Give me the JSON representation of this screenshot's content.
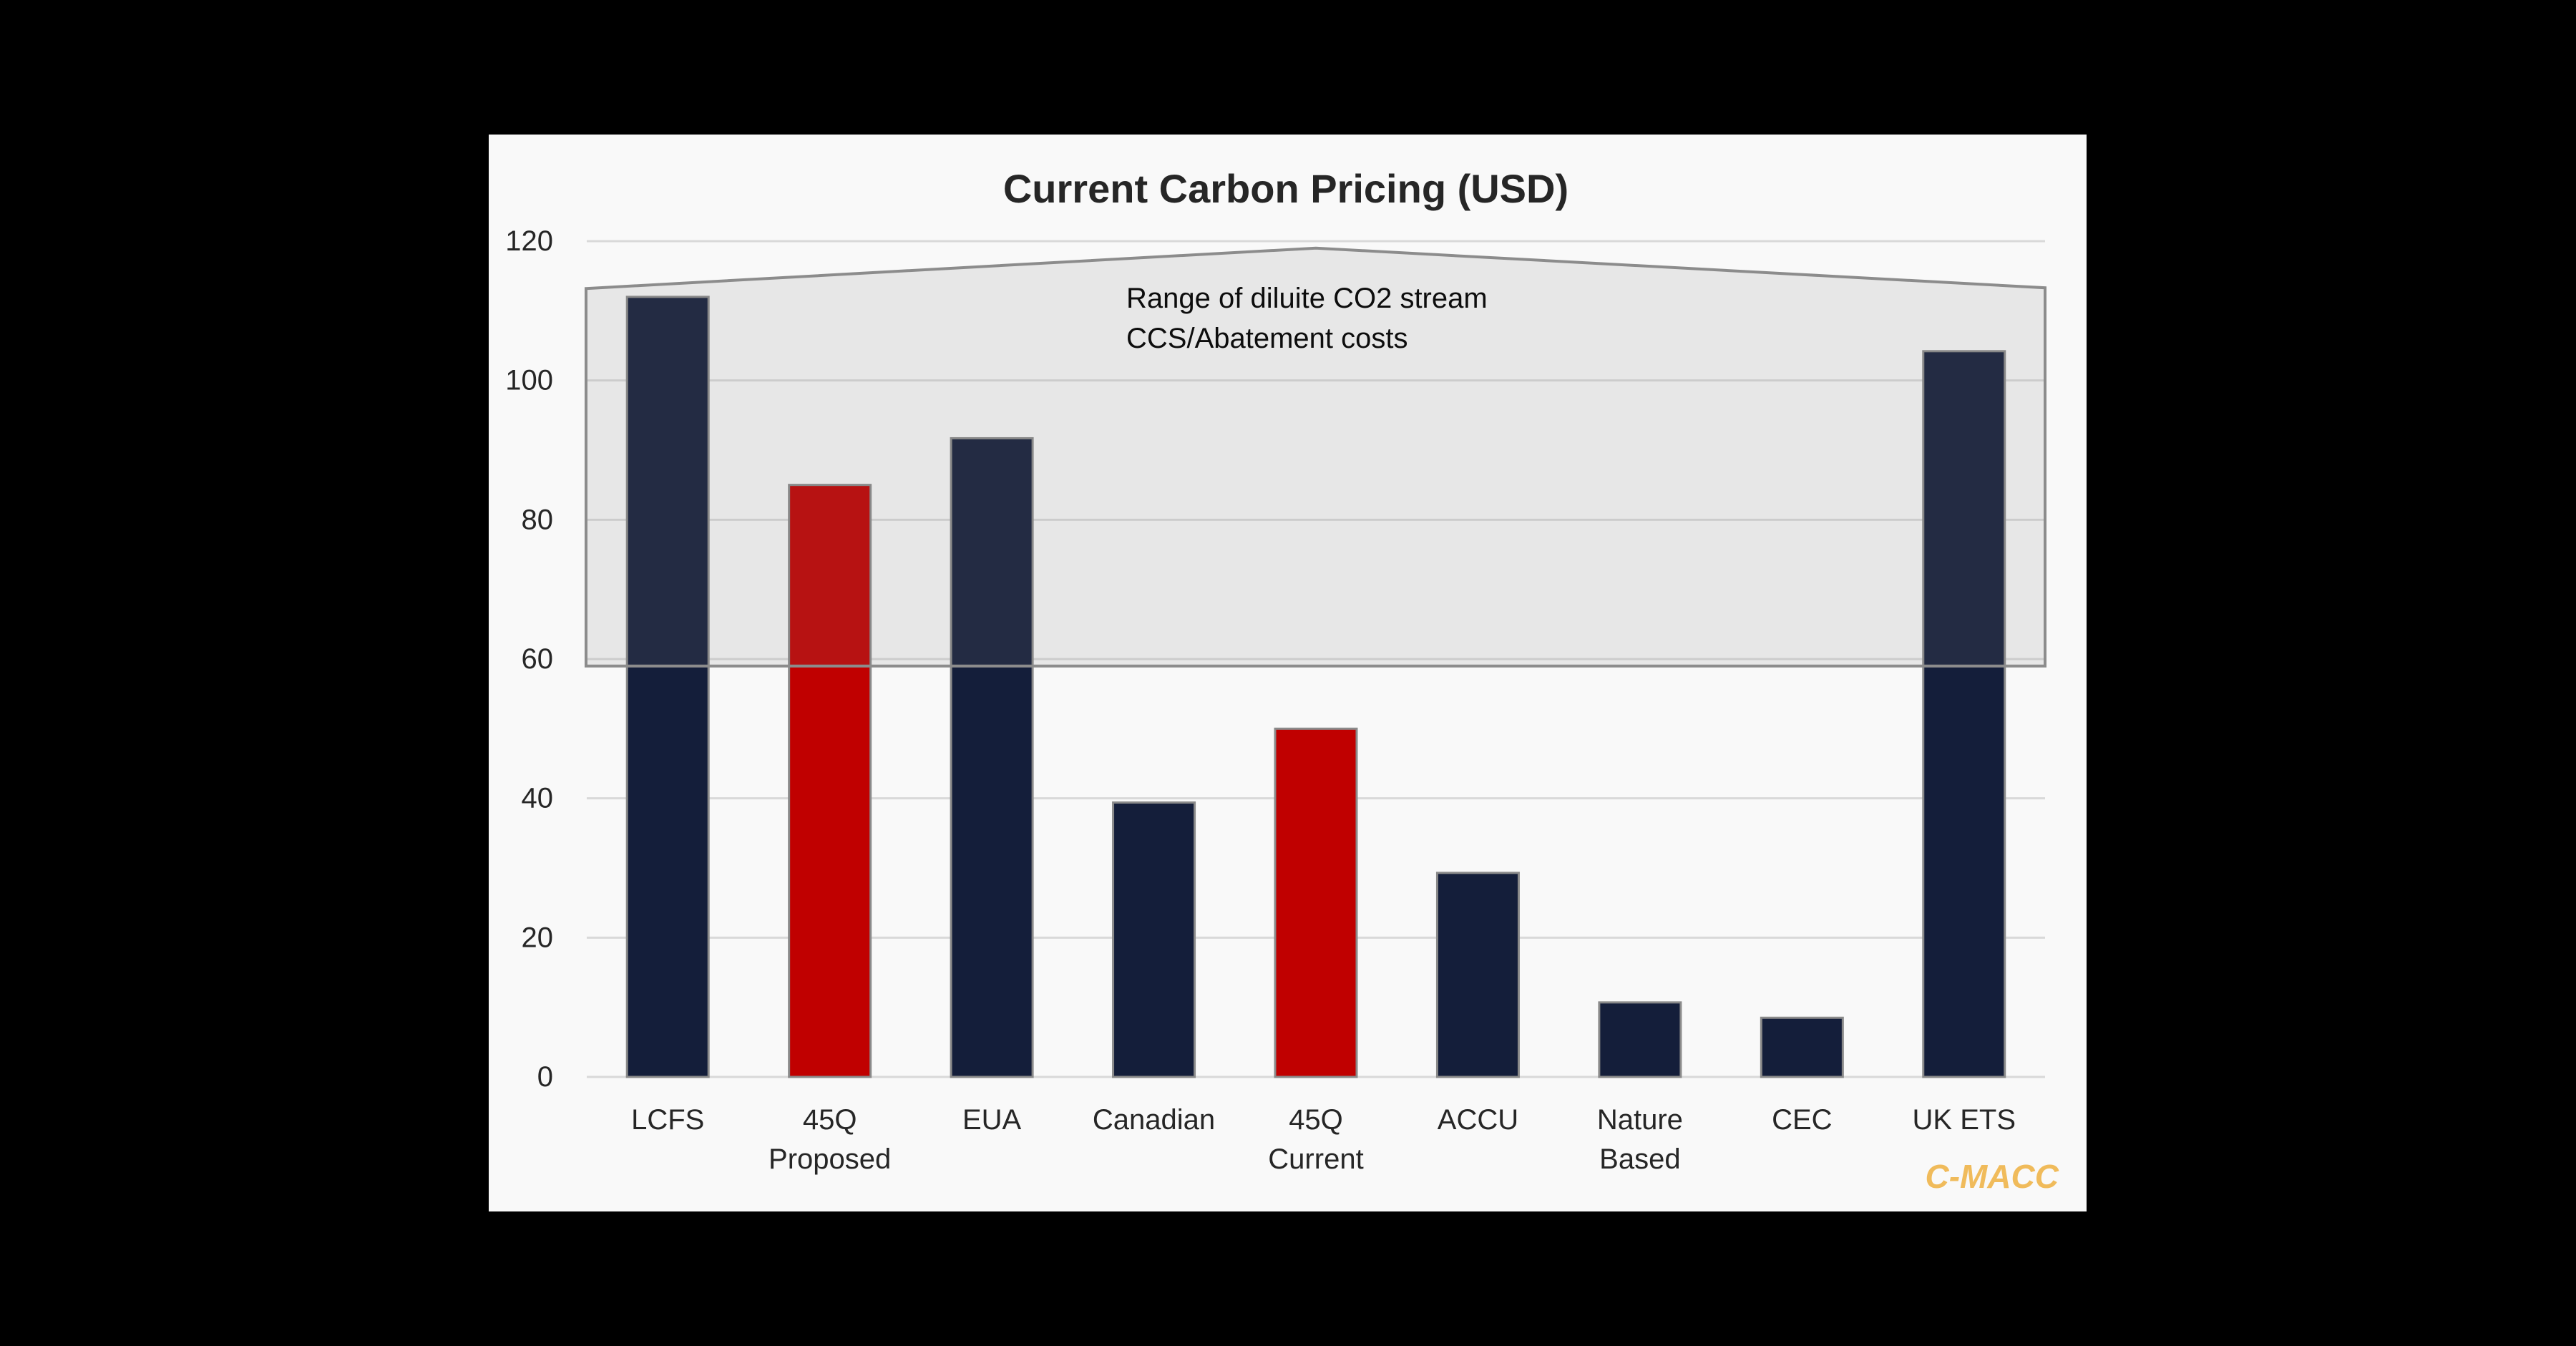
{
  "chart_data": {
    "type": "bar",
    "title": "Current Carbon Pricing (USD)",
    "xlabel": "",
    "ylabel": "",
    "ylim": [
      0,
      120
    ],
    "yticks": [
      0,
      20,
      40,
      60,
      80,
      100,
      120
    ],
    "grid": true,
    "legend": null,
    "categories": [
      [
        "LCFS"
      ],
      [
        "45Q",
        "Proposed"
      ],
      [
        "EUA"
      ],
      [
        "Canadian"
      ],
      [
        "45Q",
        "Current"
      ],
      [
        "ACCU"
      ],
      [
        "Nature",
        "Based"
      ],
      [
        "CEC"
      ],
      [
        "UK ETS"
      ]
    ],
    "category_names": [
      "LCFS",
      "45Q Proposed",
      "EUA",
      "Canadian",
      "45Q Current",
      "ACCU",
      "Nature Based",
      "CEC",
      "UK ETS"
    ],
    "values": [
      112,
      85,
      91.7,
      39.4,
      50,
      29.3,
      10.7,
      8.5,
      104.2
    ],
    "bar_colors": [
      "#141e3a",
      "#c00000",
      "#141e3a",
      "#141e3a",
      "#c00000",
      "#141e3a",
      "#141e3a",
      "#141e3a",
      "#141e3a"
    ],
    "annotations": [
      {
        "type": "shaded_range",
        "label_lines": [
          "Range of diluite CO2 stream",
          "CCS/Abatement costs"
        ],
        "low": 59,
        "high_left": 113.2,
        "high_peak": 119,
        "high_right": 113.3,
        "peak_category": "45Q Current"
      }
    ],
    "watermark": "C-MACC"
  },
  "colors": {
    "navy": "#141e3a",
    "red": "#c00000",
    "brand": "#f0bb5b",
    "panel": "#f9f9f9",
    "grid": "#d9d9d9"
  }
}
